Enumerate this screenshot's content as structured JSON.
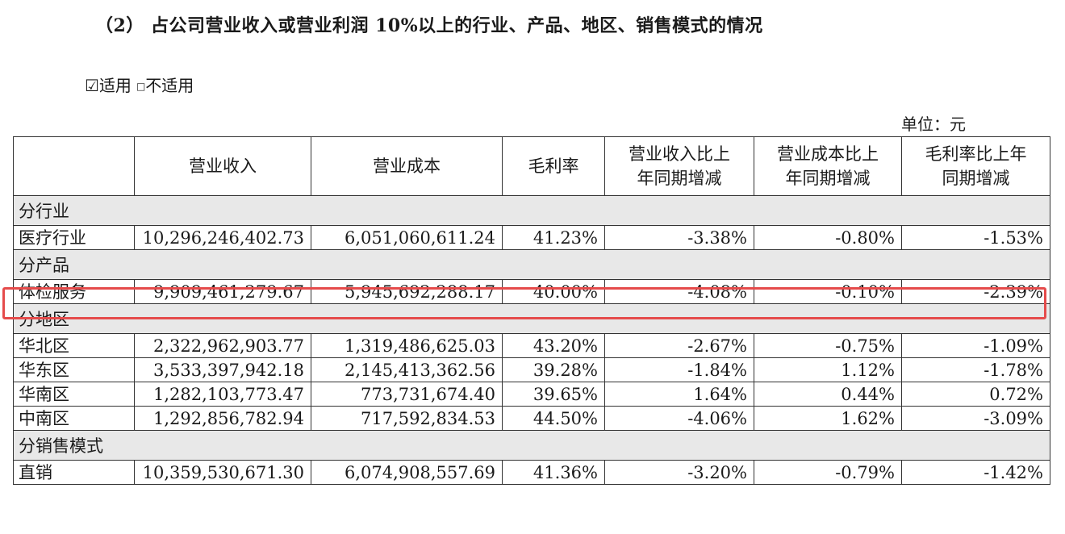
{
  "heading": "（2） 占公司营业收入或营业利润 10%以上的行业、产品、地区、销售模式的情况",
  "applicable": {
    "checked_box": "☑",
    "checked_label": "适用",
    "unchecked_box": "□",
    "unchecked_label": "不适用"
  },
  "unit": "单位：元",
  "table": {
    "headers": [
      "",
      "营业收入",
      "营业成本",
      "毛利率",
      "营业收入比上\n年同期增减",
      "营业成本比上\n年同期增减",
      "毛利率比上年\n同期增减"
    ],
    "sections": [
      {
        "title": "分行业",
        "rows": [
          [
            "医疗行业",
            "10,296,246,402.73",
            "6,051,060,611.24",
            "41.23%",
            "-3.38%",
            "-0.80%",
            "-1.53%"
          ]
        ]
      },
      {
        "title": "分产品",
        "rows": [
          [
            "体检服务",
            "9,909,461,279.67",
            "5,945,692,288.17",
            "40.00%",
            "-4.08%",
            "-0.10%",
            "-2.39%"
          ]
        ]
      },
      {
        "title": "分地区",
        "rows": [
          [
            "华北区",
            "2,322,962,903.77",
            "1,319,486,625.03",
            "43.20%",
            "-2.67%",
            "-0.75%",
            "-1.09%"
          ],
          [
            "华东区",
            "3,533,397,942.18",
            "2,145,413,362.56",
            "39.28%",
            "-1.84%",
            "1.12%",
            "-1.78%"
          ],
          [
            "华南区",
            "1,282,103,773.47",
            "773,731,674.40",
            "39.65%",
            "1.64%",
            "0.44%",
            "0.72%"
          ],
          [
            "中南区",
            "1,292,856,782.94",
            "717,592,834.53",
            "44.50%",
            "-4.06%",
            "1.62%",
            "-3.09%"
          ]
        ]
      },
      {
        "title": "分销售模式",
        "rows": [
          [
            "直销",
            "10,359,530,671.30",
            "6,074,908,557.69",
            "41.36%",
            "-3.20%",
            "-0.79%",
            "-1.42%"
          ]
        ]
      }
    ]
  },
  "highlight_color": "#e54b4b"
}
